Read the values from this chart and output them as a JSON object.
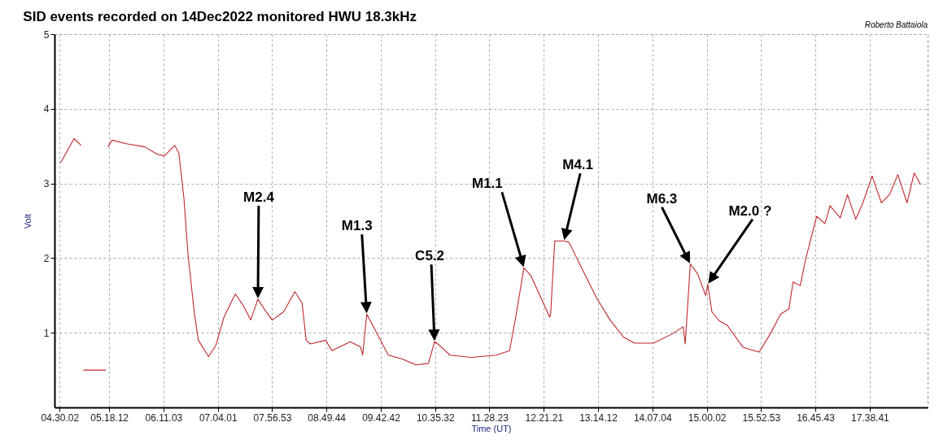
{
  "chart_data": {
    "type": "line",
    "title": "SID events recorded on 14Dec2022 monitored HWU 18.3kHz",
    "xlabel": "Time (UT)",
    "ylabel": "Volt",
    "x": [
      "2022-12-14T04:31",
      "2022-12-14T04:44",
      "2022-12-14T04:51",
      "2022-12-14T04:52",
      "2022-12-14T04:53",
      "2022-12-14T05:15",
      "2022-12-14T05:16",
      "2022-12-14T05:17",
      "2022-12-14T05:21",
      "2022-12-14T05:36",
      "2022-12-14T05:53",
      "2022-12-14T06:05",
      "2022-12-14T06:12",
      "2022-12-14T06:22",
      "2022-12-14T06:26",
      "2022-12-14T06:31",
      "2022-12-14T06:35",
      "2022-12-14T06:41",
      "2022-12-14T06:45",
      "2022-12-14T06:55",
      "2022-12-14T07:02",
      "2022-12-14T07:10",
      "2022-12-14T07:21",
      "2022-12-14T07:29",
      "2022-12-14T07:36",
      "2022-12-14T07:43",
      "2022-12-14T07:49",
      "2022-12-14T07:57",
      "2022-12-14T08:08",
      "2022-12-14T08:19",
      "2022-12-14T08:26",
      "2022-12-14T08:30",
      "2022-12-14T08:34",
      "2022-12-14T08:49",
      "2022-12-14T08:55",
      "2022-12-14T09:13",
      "2022-12-14T09:23",
      "2022-12-14T09:25",
      "2022-12-14T09:29",
      "2022-12-14T09:50",
      "2022-12-14T10:03",
      "2022-12-14T10:17",
      "2022-12-14T10:29",
      "2022-12-14T10:35",
      "2022-12-14T10:40",
      "2022-12-14T10:50",
      "2022-12-14T11:11",
      "2022-12-14T11:35",
      "2022-12-14T11:48",
      "2022-12-14T11:54",
      "2022-12-14T12:02",
      "2022-12-14T12:09",
      "2022-12-14T12:27",
      "2022-12-14T12:28",
      "2022-12-14T12:32",
      "2022-12-14T12:41",
      "2022-12-14T12:46",
      "2022-12-14T12:57",
      "2022-12-14T13:13",
      "2022-12-14T13:26",
      "2022-12-14T13:39",
      "2022-12-14T13:50",
      "2022-12-14T14:08",
      "2022-12-14T14:27",
      "2022-12-14T14:37",
      "2022-12-14T14:39",
      "2022-12-14T14:44",
      "2022-12-14T14:51",
      "2022-12-14T14:59",
      "2022-12-14T15:01",
      "2022-12-14T15:05",
      "2022-12-14T15:12",
      "2022-12-14T15:20",
      "2022-12-14T15:35",
      "2022-12-14T15:43",
      "2022-12-14T15:51",
      "2022-12-14T16:02",
      "2022-12-14T16:12",
      "2022-12-14T16:20",
      "2022-12-14T16:24",
      "2022-12-14T16:31",
      "2022-12-14T16:36",
      "2022-12-14T16:47",
      "2022-12-14T16:55",
      "2022-12-14T17:00",
      "2022-12-14T17:10",
      "2022-12-14T17:17",
      "2022-12-14T17:25",
      "2022-12-14T17:32",
      "2022-12-14T17:41",
      "2022-12-14T17:50",
      "2022-12-14T17:58",
      "2022-12-14T18:06",
      "2022-12-14T18:15",
      "2022-12-14T18:22",
      "2022-12-14T18:28"
    ],
    "series": [
      {
        "color": "#c0282d",
        "values": [
          3.28,
          3.6,
          3.51,
          null,
          0.5,
          0.5,
          null,
          3.49,
          3.58,
          3.53,
          3.49,
          3.39,
          3.37,
          3.51,
          3.41,
          2.8,
          2.04,
          1.28,
          0.9,
          0.68,
          0.83,
          1.21,
          1.52,
          1.36,
          1.17,
          1.45,
          1.32,
          1.17,
          1.28,
          1.55,
          1.4,
          0.9,
          0.85,
          0.9,
          0.76,
          0.88,
          0.81,
          0.7,
          1.25,
          0.7,
          0.65,
          0.57,
          0.59,
          0.88,
          0.83,
          0.7,
          0.67,
          0.7,
          0.76,
          1.21,
          1.87,
          1.76,
          1.21,
          1.25,
          2.23,
          2.23,
          2.21,
          1.9,
          1.46,
          1.17,
          0.94,
          0.86,
          0.86,
          0.99,
          1.08,
          0.85,
          1.92,
          1.79,
          1.5,
          1.65,
          1.28,
          1.16,
          1.1,
          0.81,
          0.77,
          0.74,
          0.99,
          1.25,
          1.32,
          1.68,
          1.63,
          1.97,
          2.56,
          2.46,
          2.7,
          2.54,
          2.85,
          2.52,
          2.74,
          3.1,
          2.74,
          2.85,
          3.12,
          2.74,
          3.14,
          2.99
        ]
      }
    ],
    "xlim": [
      "2022-12-14T04:25",
      "2022-12-14T18:35"
    ],
    "xticks": [
      {
        "value": "2022-12-14T04:30:02",
        "label": "04.30.02"
      },
      {
        "value": "2022-12-14T05:18:12",
        "label": "05.18.12"
      },
      {
        "value": "2022-12-14T06:11:03",
        "label": "06.11.03"
      },
      {
        "value": "2022-12-14T07:04:01",
        "label": "07.04.01"
      },
      {
        "value": "2022-12-14T07:56:53",
        "label": "07.56.53"
      },
      {
        "value": "2022-12-14T08:49:44",
        "label": "08.49.44"
      },
      {
        "value": "2022-12-14T09:42:42",
        "label": "09.42.42"
      },
      {
        "value": "2022-12-14T10:35:32",
        "label": "10.35.32"
      },
      {
        "value": "2022-12-14T11:28:23",
        "label": "11.28.23"
      },
      {
        "value": "2022-12-14T12:21:21",
        "label": "12.21.21"
      },
      {
        "value": "2022-12-14T13:14:12",
        "label": "13.14.12"
      },
      {
        "value": "2022-12-14T14:07:04",
        "label": "14.07.04"
      },
      {
        "value": "2022-12-14T15:00:02",
        "label": "15.00.02"
      },
      {
        "value": "2022-12-14T15:52:53",
        "label": "15.52.53"
      },
      {
        "value": "2022-12-14T16:45:43",
        "label": "16.45.43"
      },
      {
        "value": "2022-12-14T17:38:41",
        "label": "17.38.41"
      }
    ],
    "ylim": [
      0,
      5
    ],
    "yticks": [
      1,
      2,
      3,
      4,
      5
    ],
    "grid": true,
    "annotations": [
      "Roberto Battaiola",
      "M2.4",
      "M1.3",
      "C5.2",
      "M1.1",
      "M4.1",
      "M6.3",
      "M2.0 ?"
    ]
  }
}
